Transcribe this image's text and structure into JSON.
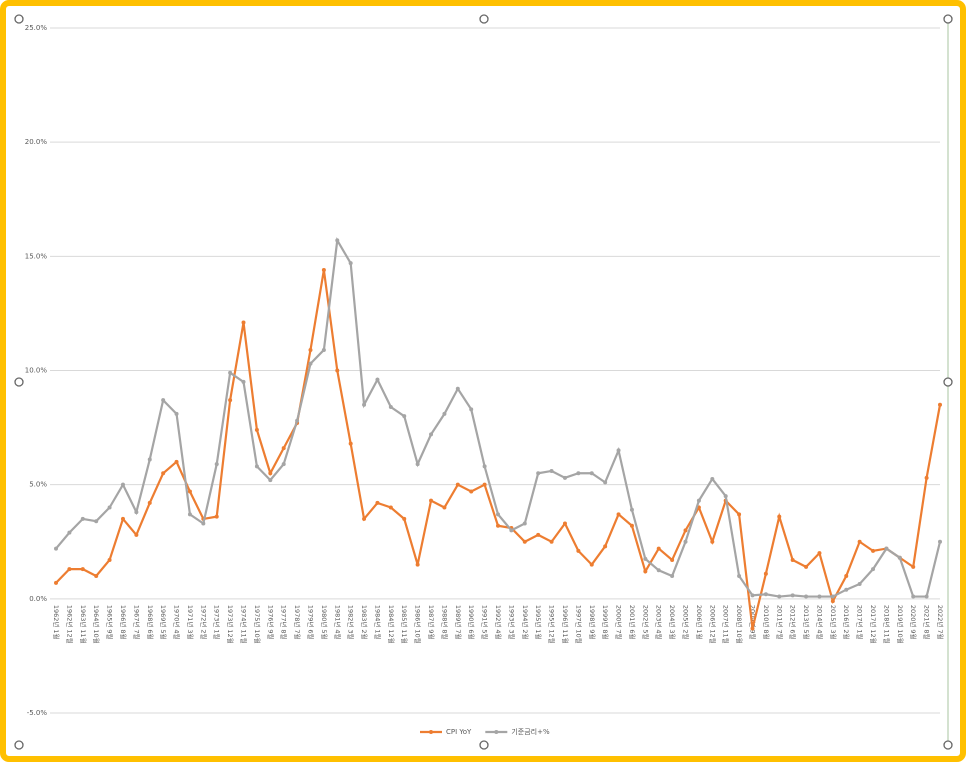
{
  "chart_data": {
    "type": "line",
    "categories": [
      "1962년 1월",
      "1962년 12월",
      "1963년 11월",
      "1964년 10월",
      "1965년 9월",
      "1966년 8월",
      "1967년 7월",
      "1968년 6월",
      "1969년 5월",
      "1970년 4월",
      "1971년 3월",
      "1972년 2월",
      "1973년 1월",
      "1973년 12월",
      "1974년 11월",
      "1975년 10월",
      "1976년 9월",
      "1977년 8월",
      "1978년 7월",
      "1979년 6월",
      "1980년 5월",
      "1981년 4월",
      "1982년 3월",
      "1983년 2월",
      "1984년 1월",
      "1984년 12월",
      "1985년 11월",
      "1986년 10월",
      "1987년 9월",
      "1988년 8월",
      "1989년 7월",
      "1990년 6월",
      "1991년 5월",
      "1992년 4월",
      "1993년 3월",
      "1994년 2월",
      "1995년 1월",
      "1995년 12월",
      "1996년 11월",
      "1997년 10월",
      "1998년 9월",
      "1999년 8월",
      "2000년 7월",
      "2001년 6월",
      "2002년 5월",
      "2003년 4월",
      "2004년 3월",
      "2005년 2월",
      "2006년 1월",
      "2006년 12월",
      "2007년 11월",
      "2008년 10월",
      "2009년 9월",
      "2010년 8월",
      "2011년 7월",
      "2012년 6월",
      "2013년 5월",
      "2014년 4월",
      "2015년 3월",
      "2016년 2월",
      "2017년 1월",
      "2017년 12월",
      "2018년 11월",
      "2019년 10월",
      "2020년 9월",
      "2021년 8월",
      "2022년 7월"
    ],
    "series": [
      {
        "name": "CPI YoY",
        "color": "#ed7d31",
        "values": [
          0.7,
          1.3,
          1.3,
          1.0,
          1.7,
          3.5,
          2.8,
          4.2,
          5.5,
          6.0,
          4.7,
          3.5,
          3.6,
          8.7,
          12.1,
          7.4,
          5.5,
          6.6,
          7.7,
          10.9,
          14.4,
          10.0,
          6.8,
          3.5,
          4.2,
          4.0,
          3.5,
          1.5,
          4.3,
          4.0,
          5.0,
          4.7,
          5.0,
          3.2,
          3.1,
          2.5,
          2.8,
          2.5,
          3.3,
          2.1,
          1.5,
          2.3,
          3.7,
          3.2,
          1.2,
          2.2,
          1.7,
          3.0,
          4.0,
          2.5,
          4.3,
          3.7,
          -1.3,
          1.1,
          3.6,
          1.7,
          1.4,
          2.0,
          -0.1,
          1.0,
          2.5,
          2.1,
          2.2,
          1.8,
          1.4,
          5.3,
          8.5
        ]
      },
      {
        "name": "기준금리+%",
        "color": "#a5a5a5",
        "values": [
          2.2,
          2.9,
          3.5,
          3.4,
          4.0,
          5.0,
          3.8,
          6.1,
          8.7,
          8.1,
          3.7,
          3.3,
          5.9,
          9.9,
          9.5,
          5.8,
          5.2,
          5.9,
          7.8,
          10.3,
          10.9,
          15.7,
          14.7,
          8.5,
          9.6,
          8.4,
          8.0,
          5.9,
          7.2,
          8.1,
          9.2,
          8.3,
          5.8,
          3.7,
          3.0,
          3.3,
          5.5,
          5.6,
          5.3,
          5.5,
          5.5,
          5.1,
          6.5,
          3.9,
          1.75,
          1.25,
          1.0,
          2.5,
          4.3,
          5.25,
          4.5,
          1.0,
          0.15,
          0.2,
          0.1,
          0.15,
          0.1,
          0.1,
          0.1,
          0.4,
          0.65,
          1.3,
          2.2,
          1.8,
          0.1,
          0.1,
          2.5
        ]
      }
    ],
    "ylim": [
      -5,
      25
    ],
    "yticks": [
      {
        "value": -5,
        "label": "-5.0%"
      },
      {
        "value": 0,
        "label": "0.0%"
      },
      {
        "value": 5,
        "label": "5.0%"
      },
      {
        "value": 10,
        "label": "10.0%"
      },
      {
        "value": 15,
        "label": "15.0%"
      },
      {
        "value": 20,
        "label": "20.0%"
      },
      {
        "value": 25,
        "label": "25.0%"
      }
    ],
    "grid": true,
    "legend": "bottom"
  }
}
